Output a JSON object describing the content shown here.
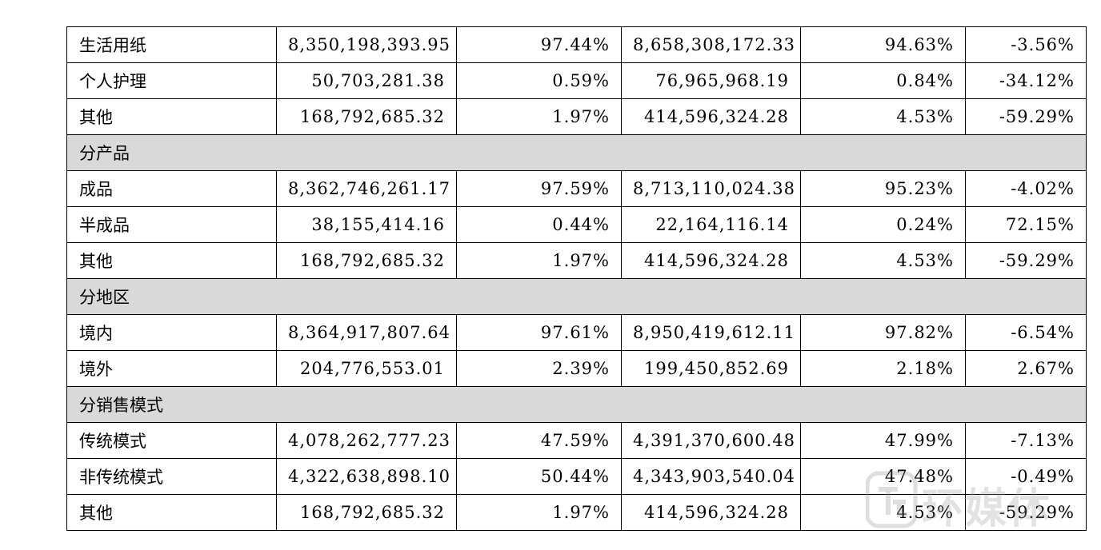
{
  "table": {
    "rows": [
      {
        "type": "data",
        "label": "生活用纸",
        "cells": [
          "8,350,198,393.95",
          "97.44%",
          "8,658,308,172.33",
          "94.63%",
          "-3.56%"
        ]
      },
      {
        "type": "data",
        "label": "个人护理",
        "cells": [
          "50,703,281.38",
          "0.59%",
          "76,965,968.19",
          "0.84%",
          "-34.12%"
        ]
      },
      {
        "type": "data",
        "label": "其他",
        "cells": [
          "168,792,685.32",
          "1.97%",
          "414,596,324.28",
          "4.53%",
          "-59.29%"
        ]
      },
      {
        "type": "section",
        "label": "分产品"
      },
      {
        "type": "data",
        "label": "成品",
        "cells": [
          "8,362,746,261.17",
          "97.59%",
          "8,713,110,024.38",
          "95.23%",
          "-4.02%"
        ]
      },
      {
        "type": "data",
        "label": "半成品",
        "cells": [
          "38,155,414.16",
          "0.44%",
          "22,164,116.14",
          "0.24%",
          "72.15%"
        ]
      },
      {
        "type": "data",
        "label": "其他",
        "cells": [
          "168,792,685.32",
          "1.97%",
          "414,596,324.28",
          "4.53%",
          "-59.29%"
        ]
      },
      {
        "type": "section",
        "label": "分地区"
      },
      {
        "type": "data",
        "label": "境内",
        "cells": [
          "8,364,917,807.64",
          "97.61%",
          "8,950,419,612.11",
          "97.82%",
          "-6.54%"
        ]
      },
      {
        "type": "data",
        "label": "境外",
        "cells": [
          "204,776,553.01",
          "2.39%",
          "199,450,852.69",
          "2.18%",
          "2.67%"
        ]
      },
      {
        "type": "section",
        "label": "分销售模式"
      },
      {
        "type": "data",
        "label": "传统模式",
        "cells": [
          "4,078,262,777.23",
          "47.59%",
          "4,391,370,600.48",
          "47.99%",
          "-7.13%"
        ]
      },
      {
        "type": "data",
        "label": "非传统模式",
        "cells": [
          "4,322,638,898.10",
          "50.44%",
          "4,343,903,540.04",
          "47.48%",
          "-0.49%"
        ]
      },
      {
        "type": "data",
        "label": "其他",
        "cells": [
          "168,792,685.32",
          "1.97%",
          "414,596,324.28",
          "4.53%",
          "-59.29%"
        ]
      }
    ]
  },
  "watermark": {
    "text": "环媒体",
    "logo": "tc-logo-icon"
  }
}
